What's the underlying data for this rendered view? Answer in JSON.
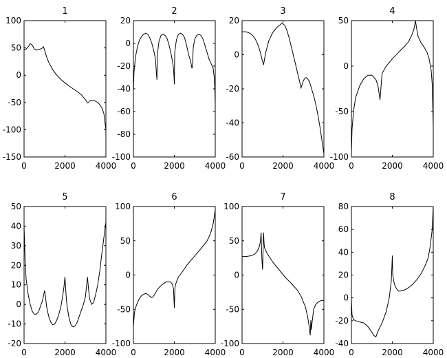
{
  "chart_data": [
    {
      "type": "line",
      "title": "1",
      "xlim": [
        0,
        4000
      ],
      "ylim": [
        -150,
        100
      ],
      "xticks": [
        0,
        2000,
        4000
      ],
      "yticks": [
        100,
        50,
        0,
        -50,
        -100,
        -150
      ],
      "series": [
        {
          "x": [
            0,
            100,
            200,
            300,
            400,
            500,
            600,
            700,
            800,
            900,
            950,
            1000,
            1100,
            1200,
            1400,
            1600,
            1800,
            2000,
            2200,
            2400,
            2600,
            2800,
            3000,
            3100,
            3150,
            3200,
            3300,
            3400,
            3500,
            3600,
            3700,
            3800,
            3900,
            4000
          ],
          "y": [
            47,
            48,
            52,
            58,
            55,
            48,
            46,
            47,
            48,
            50,
            52,
            46,
            34,
            24,
            10,
            0,
            -8,
            -14,
            -20,
            -25,
            -30,
            -36,
            -45,
            -51,
            -50,
            -47,
            -46,
            -46,
            -48,
            -50,
            -54,
            -60,
            -70,
            -100
          ]
        }
      ]
    },
    {
      "type": "line",
      "title": "2",
      "xlim": [
        0,
        4000
      ],
      "ylim": [
        -100,
        20
      ],
      "xticks": [
        0,
        2000,
        4000
      ],
      "yticks": [
        20,
        0,
        -20,
        -40,
        -60,
        -80,
        -100
      ],
      "series": [
        {
          "x": [
            0,
            30,
            100,
            200,
            300,
            400,
            500,
            600,
            700,
            800,
            900,
            1000,
            1080,
            1130,
            1150,
            1170,
            1250,
            1350,
            1450,
            1550,
            1650,
            1750,
            1850,
            1950,
            1985,
            2000,
            2020,
            2100,
            2200,
            2300,
            2400,
            2500,
            2600,
            2700,
            2800,
            2860,
            2890,
            2920,
            3000,
            3100,
            3200,
            3300,
            3400,
            3500,
            3600,
            3700,
            3800,
            3900,
            3950,
            3980,
            4000
          ],
          "y": [
            -42,
            -25,
            -12,
            -3,
            3,
            6,
            8,
            9,
            8,
            5,
            0,
            -7,
            -14,
            -28,
            -32,
            -10,
            2,
            7,
            8,
            7,
            4,
            -2,
            -10,
            -20,
            -30,
            -36,
            -8,
            3,
            8,
            9,
            8,
            5,
            -2,
            -10,
            -16,
            -22,
            -20,
            -4,
            4,
            7,
            8,
            7,
            4,
            -2,
            -8,
            -14,
            -18,
            -22,
            -30,
            -40,
            -55
          ]
        }
      ]
    },
    {
      "type": "line",
      "title": "3",
      "xlim": [
        0,
        4000
      ],
      "ylim": [
        -60,
        20
      ],
      "xticks": [
        0,
        2000,
        4000
      ],
      "yticks": [
        20,
        0,
        -20,
        -40,
        -60
      ],
      "series": [
        {
          "x": [
            0,
            100,
            200,
            300,
            400,
            500,
            600,
            700,
            800,
            900,
            1000,
            1050,
            1150,
            1300,
            1500,
            1700,
            1900,
            1970,
            2100,
            2200,
            2300,
            2400,
            2500,
            2600,
            2700,
            2800,
            2880,
            2950,
            3000,
            3100,
            3150,
            3200,
            3300,
            3400,
            3500,
            3600,
            3700,
            3800,
            3900,
            4000
          ],
          "y": [
            13.5,
            13.5,
            13.5,
            13,
            12.5,
            11.5,
            10,
            8,
            5,
            1,
            -4,
            -6,
            1,
            8,
            13,
            16,
            18,
            18.5,
            17,
            14,
            10,
            5,
            0,
            -5,
            -10,
            -15,
            -19.5,
            -17,
            -15,
            -13.5,
            -13.5,
            -14,
            -16,
            -20,
            -24,
            -29,
            -35,
            -42,
            -50,
            -58
          ]
        }
      ]
    },
    {
      "type": "line",
      "title": "4",
      "xlim": [
        0,
        4000
      ],
      "ylim": [
        -100,
        50
      ],
      "xticks": [
        0,
        2000,
        4000
      ],
      "yticks": [
        50,
        0,
        -50,
        -100
      ],
      "series": [
        {
          "x": [
            0,
            30,
            100,
            200,
            400,
            600,
            800,
            1000,
            1200,
            1300,
            1350,
            1400,
            1500,
            1700,
            2000,
            2300,
            2600,
            2800,
            2950,
            3050,
            3100,
            3130,
            3170,
            3250,
            3400,
            3550,
            3700,
            3800,
            3900,
            3950,
            4000
          ],
          "y": [
            -95,
            -70,
            -50,
            -35,
            -22,
            -14,
            -10,
            -10,
            -15,
            -22,
            -30,
            -37,
            -8,
            0,
            8,
            15,
            22,
            27,
            34,
            40,
            46,
            50,
            44,
            33,
            26,
            21,
            15,
            8,
            -5,
            -20,
            -65
          ]
        }
      ]
    },
    {
      "type": "line",
      "title": "5",
      "xlim": [
        0,
        4000
      ],
      "ylim": [
        -20,
        50
      ],
      "xticks": [
        0,
        2000,
        4000
      ],
      "yticks": [
        50,
        40,
        30,
        20,
        10,
        0,
        -10,
        -20
      ],
      "series": [
        {
          "x": [
            0,
            50,
            100,
            200,
            300,
            400,
            500,
            600,
            700,
            800,
            900,
            950,
            1000,
            1050,
            1100,
            1200,
            1300,
            1400,
            1500,
            1600,
            1700,
            1800,
            1900,
            1950,
            2000,
            2050,
            2100,
            2200,
            2300,
            2400,
            2500,
            2600,
            2700,
            2800,
            2900,
            3000,
            3050,
            3100,
            3150,
            3200,
            3300,
            3400,
            3500,
            3600,
            3700,
            3800,
            3900,
            4000
          ],
          "y": [
            40,
            22,
            13,
            5,
            0,
            -3.5,
            -5,
            -5,
            -4,
            -1,
            2,
            4.5,
            7,
            4,
            -1,
            -6,
            -9,
            -10.5,
            -10,
            -8,
            -5,
            -1,
            5,
            9,
            14,
            5,
            -1,
            -7,
            -10.5,
            -11.5,
            -11,
            -9,
            -6,
            -3,
            0,
            4,
            9,
            14,
            8,
            3,
            0,
            1,
            5,
            10,
            17,
            26,
            34,
            42
          ]
        }
      ]
    },
    {
      "type": "line",
      "title": "6",
      "xlim": [
        0,
        4000
      ],
      "ylim": [
        -100,
        100
      ],
      "xticks": [
        0,
        2000,
        4000
      ],
      "yticks": [
        100,
        50,
        0,
        -50,
        -100
      ],
      "series": [
        {
          "x": [
            0,
            50,
            100,
            200,
            300,
            400,
            500,
            600,
            700,
            800,
            900,
            950,
            1000,
            1100,
            1200,
            1400,
            1600,
            1800,
            1900,
            1960,
            2000,
            2030,
            2100,
            2200,
            2400,
            2600,
            2800,
            3000,
            3200,
            3400,
            3600,
            3700,
            3800,
            3900,
            4000
          ],
          "y": [
            -75,
            -55,
            -48,
            -40,
            -34,
            -30,
            -28,
            -27,
            -28,
            -31,
            -33,
            -32,
            -30,
            -25,
            -20,
            -14,
            -10,
            -10,
            -13,
            -20,
            -48,
            -18,
            -10,
            -3,
            5,
            14,
            21,
            28,
            35,
            42,
            50,
            56,
            64,
            75,
            95
          ]
        }
      ]
    },
    {
      "type": "line",
      "title": "7",
      "xlim": [
        0,
        4000
      ],
      "ylim": [
        -100,
        100
      ],
      "xticks": [
        0,
        2000,
        4000
      ],
      "yticks": [
        100,
        50,
        0,
        -50,
        -100
      ],
      "series": [
        {
          "x": [
            0,
            200,
            400,
            600,
            750,
            850,
            900,
            930,
            950,
            970,
            1000,
            1020,
            1050,
            1080,
            1100,
            1200,
            1300,
            1500,
            1800,
            2100,
            2400,
            2700,
            2900,
            3100,
            3200,
            3280,
            3330,
            3360,
            3390,
            3420,
            3500,
            3600,
            3700,
            3800,
            3900,
            4000
          ],
          "y": [
            27,
            27,
            28,
            30,
            35,
            42,
            50,
            62,
            40,
            22,
            8,
            28,
            62,
            45,
            40,
            33,
            28,
            19,
            8,
            -3,
            -12,
            -22,
            -32,
            -47,
            -60,
            -75,
            -88,
            -66,
            -80,
            -70,
            -50,
            -43,
            -40,
            -38,
            -37,
            -37
          ]
        }
      ]
    },
    {
      "type": "line",
      "title": "8",
      "xlim": [
        0,
        4000
      ],
      "ylim": [
        -40,
        80
      ],
      "xticks": [
        0,
        2000,
        4000
      ],
      "yticks": [
        80,
        60,
        40,
        20,
        0,
        -20,
        -40
      ],
      "series": [
        {
          "x": [
            0,
            30,
            100,
            200,
            400,
            600,
            800,
            1000,
            1100,
            1200,
            1300,
            1500,
            1700,
            1850,
            1950,
            2000,
            2020,
            2100,
            2200,
            2300,
            2400,
            2600,
            2800,
            3000,
            3200,
            3400,
            3600,
            3750,
            3850,
            3950,
            4000
          ],
          "y": [
            -2,
            -15,
            -19,
            -20,
            -21,
            -22,
            -25,
            -30,
            -33,
            -34,
            -29,
            -22,
            -12,
            0,
            15,
            37,
            20,
            12,
            8,
            6,
            6,
            7,
            9,
            12,
            16,
            21,
            28,
            35,
            45,
            60,
            80
          ]
        }
      ]
    }
  ]
}
